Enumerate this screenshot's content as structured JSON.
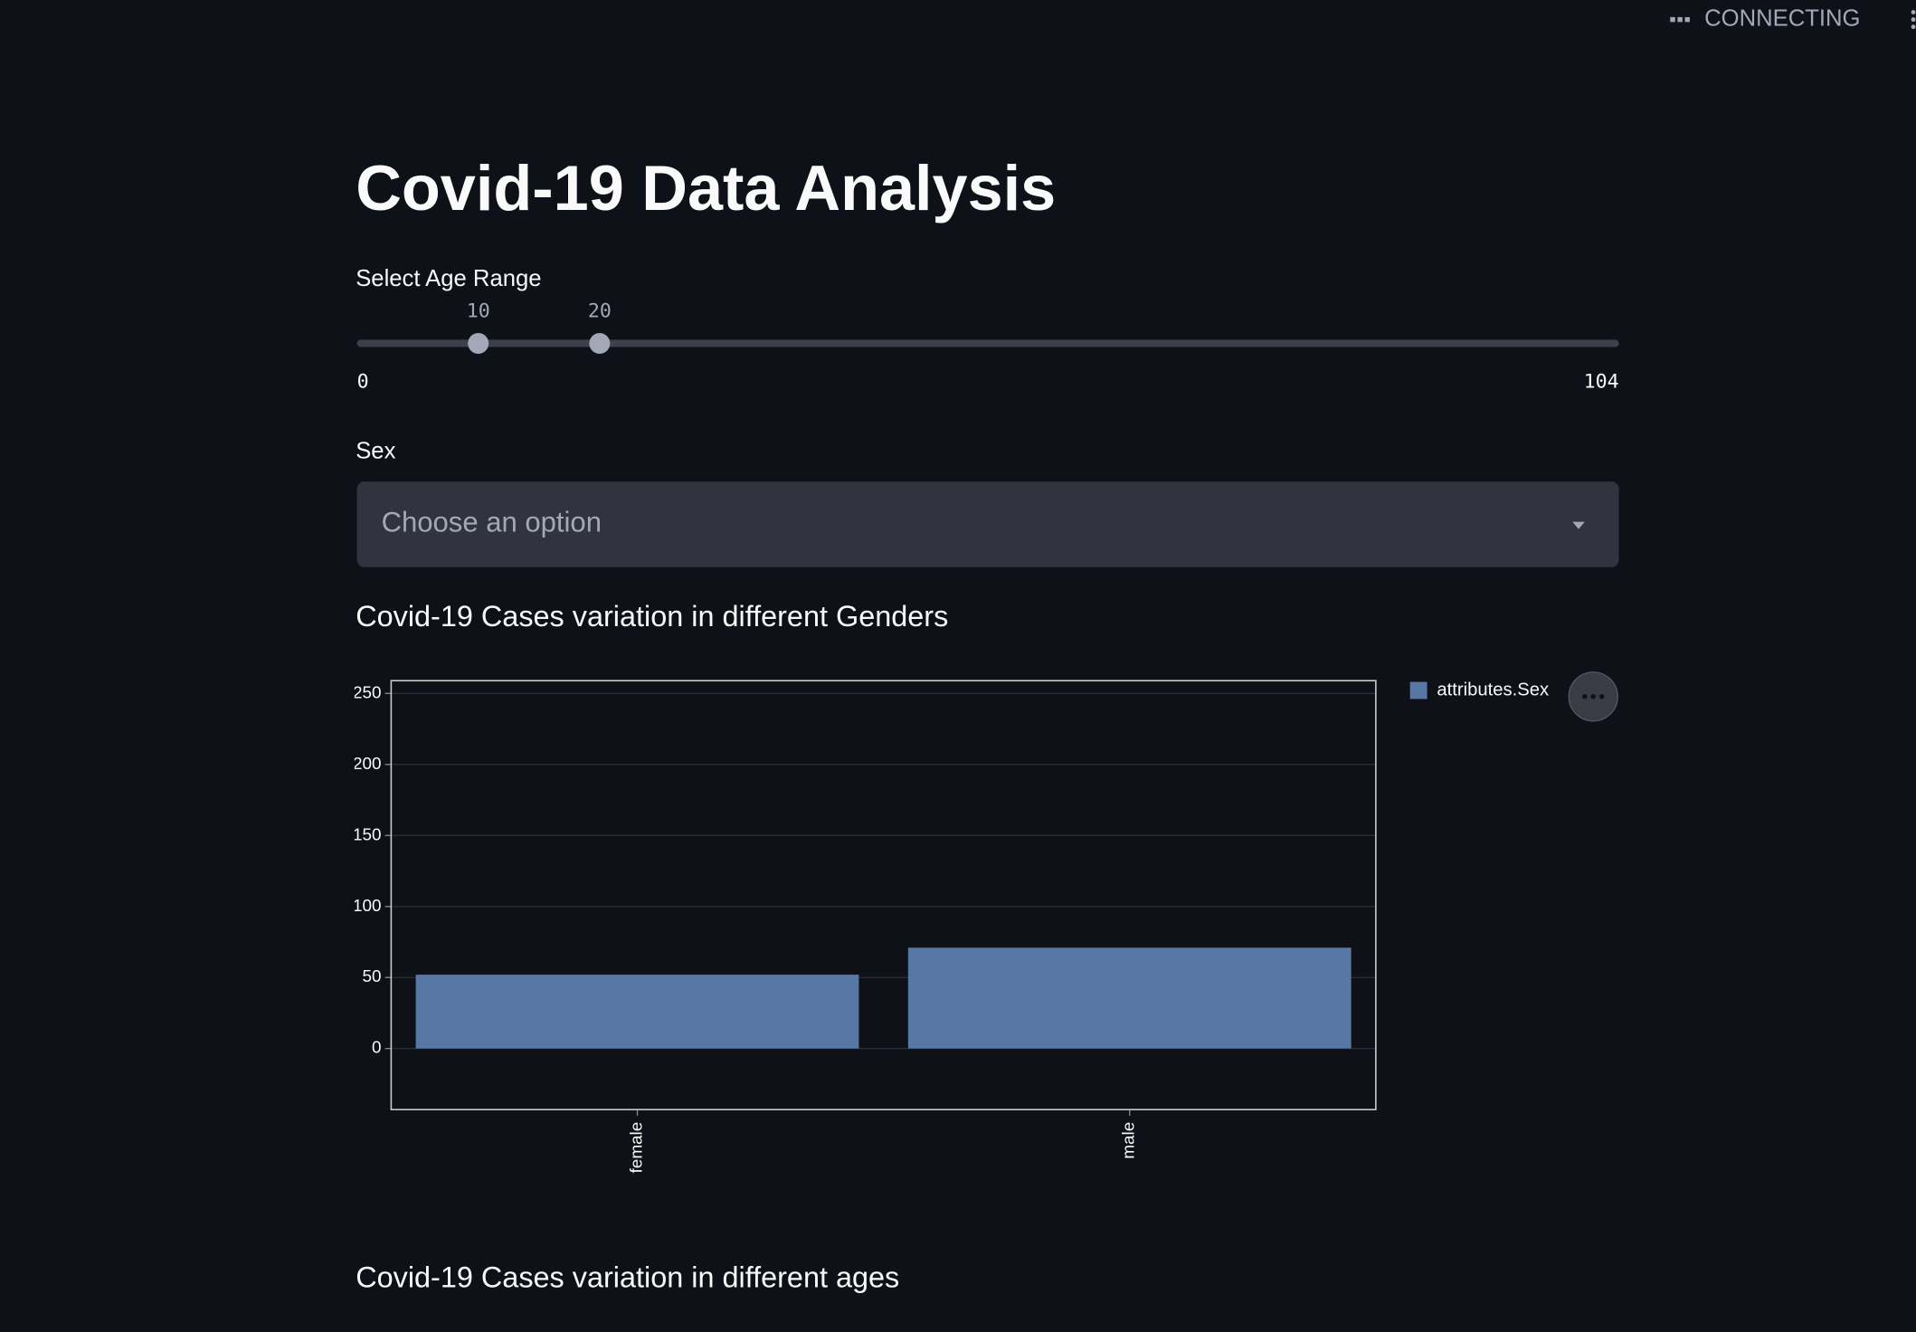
{
  "header": {
    "status": "CONNECTING"
  },
  "title": "Covid-19 Data Analysis",
  "slider": {
    "label": "Select Age Range",
    "min": 0,
    "max": 104,
    "low": 10,
    "high": 20
  },
  "select": {
    "label": "Sex",
    "placeholder": "Choose an option"
  },
  "sections": [
    "Covid-19 Cases variation in different Genders",
    "Covid-19 Cases variation in different ages"
  ],
  "chart_data": {
    "type": "bar",
    "categories": [
      "female",
      "male"
    ],
    "series": [
      {
        "name": "attributes.Sex",
        "color": "#5778a4",
        "values": [
          52,
          71
        ]
      }
    ],
    "ylim": [
      -43,
      259
    ],
    "yticks": [
      0,
      50,
      100,
      150,
      200,
      250
    ],
    "grid": true
  }
}
